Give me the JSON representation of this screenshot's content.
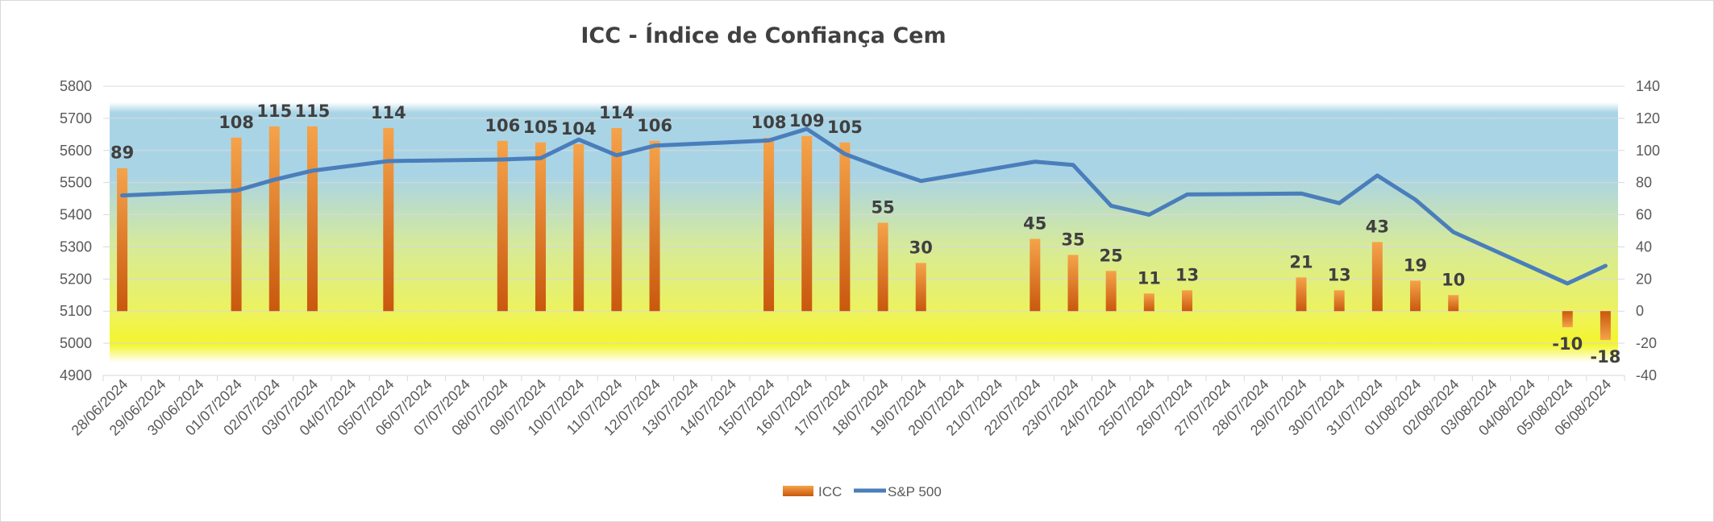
{
  "chart_data": {
    "type": "bar",
    "title": "ICC - Índice de Confiança Cem",
    "categories": [
      "28/06/2024",
      "29/06/2024",
      "30/06/2024",
      "01/07/2024",
      "02/07/2024",
      "03/07/2024",
      "04/07/2024",
      "05/07/2024",
      "06/07/2024",
      "07/07/2024",
      "08/07/2024",
      "09/07/2024",
      "10/07/2024",
      "11/07/2024",
      "12/07/2024",
      "13/07/2024",
      "14/07/2024",
      "15/07/2024",
      "16/07/2024",
      "17/07/2024",
      "18/07/2024",
      "19/07/2024",
      "20/07/2024",
      "21/07/2024",
      "22/07/2024",
      "23/07/2024",
      "24/07/2024",
      "25/07/2024",
      "26/07/2024",
      "27/07/2024",
      "28/07/2024",
      "29/07/2024",
      "30/07/2024",
      "31/07/2024",
      "01/08/2024",
      "02/08/2024",
      "03/08/2024",
      "04/08/2024",
      "05/08/2024",
      "06/08/2024"
    ],
    "y_left": {
      "min": 4900,
      "max": 5800,
      "ticks": [
        4900,
        5000,
        5100,
        5200,
        5300,
        5400,
        5500,
        5600,
        5700,
        5800
      ]
    },
    "y_right": {
      "min": -40,
      "max": 140,
      "ticks": [
        -40,
        -20,
        0,
        20,
        40,
        60,
        80,
        100,
        120,
        140
      ]
    },
    "series": [
      {
        "name": "ICC",
        "type": "bar",
        "axis": "right",
        "color": "#e8731c",
        "values": [
          89,
          null,
          null,
          108,
          115,
          115,
          null,
          114,
          null,
          null,
          106,
          105,
          104,
          114,
          106,
          null,
          null,
          108,
          109,
          105,
          55,
          30,
          null,
          null,
          45,
          35,
          25,
          11,
          13,
          null,
          null,
          21,
          13,
          43,
          19,
          10,
          null,
          null,
          -10,
          -18
        ]
      },
      {
        "name": "S&P 500",
        "type": "line",
        "axis": "left",
        "color": "#4a7ebb",
        "values": [
          5460,
          null,
          null,
          5475,
          5509,
          5537,
          null,
          5567,
          null,
          null,
          5572,
          5576,
          5634,
          5585,
          5615,
          null,
          null,
          5631,
          5667,
          5589,
          5545,
          5505,
          null,
          null,
          5565,
          5555,
          5428,
          5400,
          5463,
          null,
          null,
          5466,
          5436,
          5522,
          5447,
          5346,
          null,
          null,
          5186,
          5241
        ]
      }
    ],
    "grid": true,
    "legend_position": "bottom"
  },
  "colors": {
    "band_top": "#a9d4e6",
    "band_mid": "#d6ea9a",
    "band_bottom": "#f4f52a",
    "grid": "#d9d9d9",
    "bar_light": "#f5a34a",
    "bar_dark": "#c9580e",
    "line": "#4a7ebb"
  }
}
